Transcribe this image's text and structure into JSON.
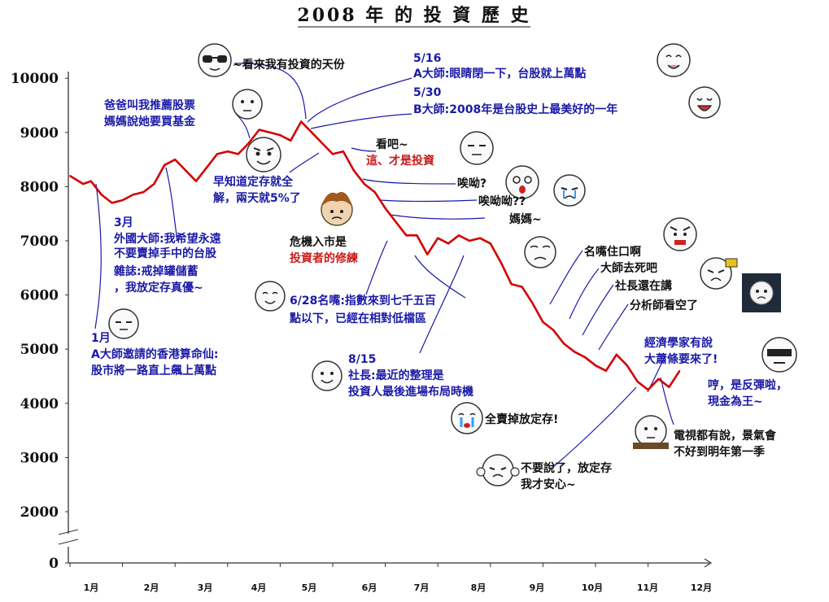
{
  "chart_data": {
    "type": "line",
    "title": "2008 年 的 投 資 歷 史",
    "x_tick_labels": [
      "1月",
      "2月",
      "3月",
      "4月",
      "5月",
      "6月",
      "7月",
      "8月",
      "9月",
      "10月",
      "11月",
      "12月"
    ],
    "y_tick_labels": [
      "0",
      "2000",
      "3000",
      "4000",
      "5000",
      "6000",
      "7000",
      "8000",
      "9000",
      "10000"
    ],
    "ylim": [
      2000,
      10000
    ],
    "axis_break": true,
    "line_color": "#d40000",
    "series": [
      {
        "x": [
          0.0,
          0.25,
          0.4,
          0.6,
          0.8,
          1.0,
          1.2,
          1.4,
          1.6,
          1.8,
          2.0,
          2.2,
          2.4,
          2.6,
          2.8,
          3.0,
          3.2,
          3.4,
          3.6,
          3.8,
          4.0,
          4.2,
          4.4,
          4.6,
          4.8,
          5.0,
          5.2,
          5.4,
          5.6,
          5.8,
          6.0,
          6.2,
          6.4,
          6.6,
          6.8,
          7.0,
          7.2,
          7.4,
          7.6,
          7.8,
          8.0,
          8.2,
          8.4,
          8.6,
          8.8,
          9.0,
          9.2,
          9.4,
          9.6,
          9.8,
          10.0,
          10.2,
          10.4,
          10.6,
          10.8,
          11.0,
          11.2,
          11.4,
          11.6
        ],
        "values": [
          8200,
          8050,
          8100,
          7850,
          7700,
          7750,
          7850,
          7900,
          8050,
          8400,
          8500,
          8300,
          8100,
          8350,
          8600,
          8650,
          8600,
          8800,
          9050,
          9000,
          8950,
          8850,
          9200,
          9000,
          8800,
          8600,
          8650,
          8300,
          8050,
          7900,
          7600,
          7350,
          7100,
          7100,
          6750,
          7050,
          6950,
          7100,
          7000,
          7050,
          6950,
          6600,
          6200,
          6150,
          5850,
          5500,
          5350,
          5100,
          4950,
          4850,
          4700,
          4600,
          4900,
          4700,
          4400,
          4250,
          4450,
          4300,
          4600
        ]
      }
    ],
    "annotations": [
      {
        "id": "jan",
        "lines": [
          "1月",
          "A大師邀請的香港算命仙:",
          "股市將一路直上飆上萬點"
        ],
        "color": "#1a1aa8"
      },
      {
        "id": "mar",
        "lines": [
          "3月",
          "外國大師:我希望永遠",
          "不要賣掉手中的台股",
          "雜誌:戒掉罐儲蓄",
          "，我放定存真優~"
        ],
        "color": "#1a1aa8"
      },
      {
        "id": "dad",
        "lines": [
          "爸爸叫我推薦股票",
          "媽媽說她要買基金"
        ],
        "color": "#1a1aa8"
      },
      {
        "id": "talent",
        "lines": [
          "~看來我有投資的天份"
        ],
        "color": "#111111"
      },
      {
        "id": "may16",
        "lines": [
          "5/16",
          "A大師:眼睛閉一下，台股就上萬點"
        ],
        "color": "#1a1aa8"
      },
      {
        "id": "may30",
        "lines": [
          "5/30",
          "B大師:2008年是台股史上最美好的一年"
        ],
        "color": "#1a1aa8"
      },
      {
        "id": "early",
        "lines": [
          "早知道定存就全",
          "解，兩天就5%了"
        ],
        "color": "#1a1aa8"
      },
      {
        "id": "see",
        "lines": [
          "看吧~"
        ],
        "color": "#111111"
      },
      {
        "id": "invest",
        "lines": [
          "這、才是投資"
        ],
        "color": "#cc1a1a"
      },
      {
        "id": "ai1",
        "lines": [
          "唉呦?"
        ],
        "color": "#111111"
      },
      {
        "id": "ai2",
        "lines": [
          "唉呦呦??"
        ],
        "color": "#111111"
      },
      {
        "id": "mom",
        "lines": [
          "媽媽~"
        ],
        "color": "#111111"
      },
      {
        "id": "crisis1",
        "lines": [
          "危機入市是"
        ],
        "color": "#111111"
      },
      {
        "id": "crisis2",
        "lines": [
          "投資者的修練"
        ],
        "color": "#cc1a1a"
      },
      {
        "id": "jun28",
        "lines": [
          "6/28名嘴:指數來到七千五百",
          "點以下，已經在相對低檔區"
        ],
        "color": "#1a1aa8"
      },
      {
        "id": "aug15",
        "lines": [
          "8/15",
          "社長:最近的整理是",
          "投資人最後進場布局時機"
        ],
        "color": "#1a1aa8"
      },
      {
        "id": "shut",
        "lines": [
          "名嘴住口啊"
        ],
        "color": "#111111"
      },
      {
        "id": "die",
        "lines": [
          "大師去死吧"
        ],
        "color": "#111111"
      },
      {
        "id": "boss",
        "lines": [
          "社長還在講"
        ],
        "color": "#111111"
      },
      {
        "id": "analyst",
        "lines": [
          "分析師看空了"
        ],
        "color": "#111111"
      },
      {
        "id": "economist",
        "lines": [
          "經濟學家有說",
          "大蕭條要來了!"
        ],
        "color": "#1a1aa8"
      },
      {
        "id": "rebound",
        "lines": [
          "哼，是反彈啦，",
          "現金為王~"
        ],
        "color": "#1a1aa8"
      },
      {
        "id": "sellall",
        "lines": [
          "全賣掉放定存!"
        ],
        "color": "#111111"
      },
      {
        "id": "tv",
        "lines": [
          "電視都有說，景氣會",
          "不好到明年第一季"
        ],
        "color": "#111111"
      },
      {
        "id": "stop",
        "lines": [
          "不要說了，放定存",
          "我才安心~"
        ],
        "color": "#111111"
      }
    ]
  }
}
